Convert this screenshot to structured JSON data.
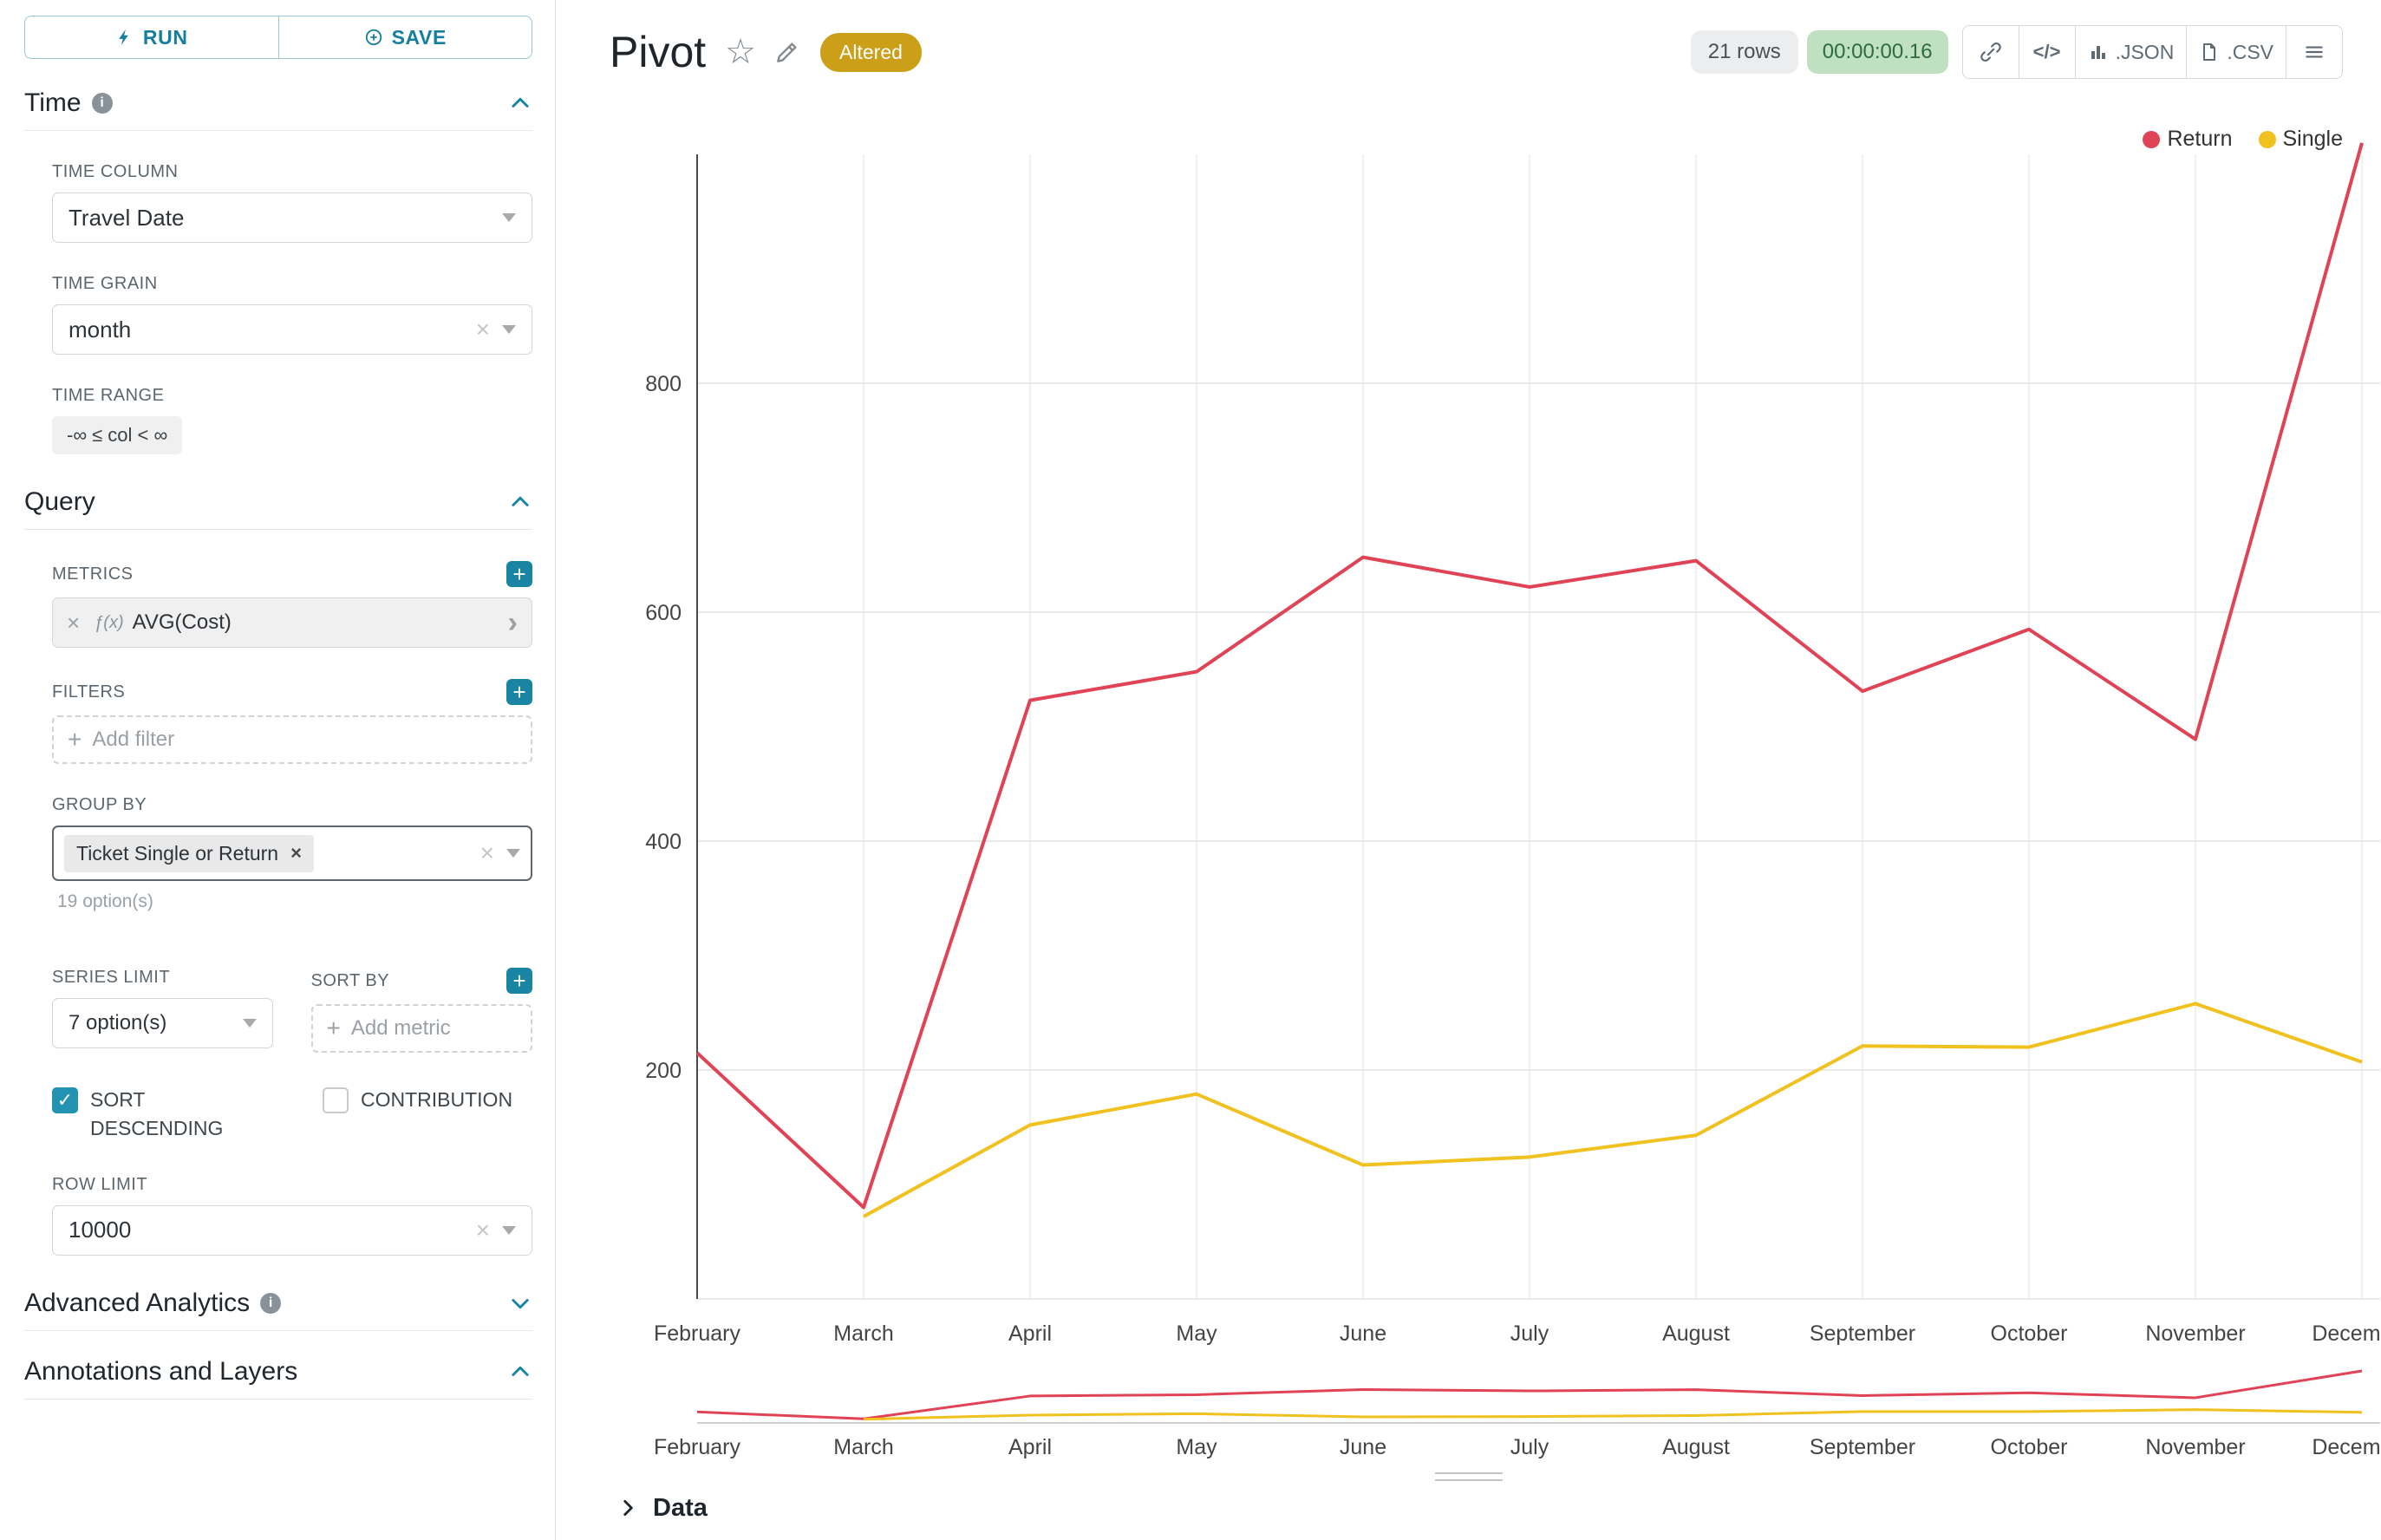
{
  "colors": {
    "accent": "#1a85a3",
    "series_return": "#e04355",
    "series_single": "#f0c11f",
    "altered_badge_bg": "#cb9f17",
    "timer_badge_bg": "#bfe0c1",
    "timer_badge_text": "#2f6c3d"
  },
  "icons": {
    "star": "☆",
    "plus": "+",
    "close": "×",
    "check": "✓",
    "caret_right": "›",
    "code": "</>",
    "info": "i"
  },
  "toolbar": {
    "run_label": "RUN",
    "save_label": "SAVE"
  },
  "sidebar": {
    "time": {
      "title": "Time",
      "time_column_label": "TIME COLUMN",
      "time_column_value": "Travel Date",
      "time_grain_label": "TIME GRAIN",
      "time_grain_value": "month",
      "time_range_label": "TIME RANGE",
      "time_range_value": "-∞ ≤ col < ∞"
    },
    "query": {
      "title": "Query",
      "metrics_label": "METRICS",
      "metric_fx": "ƒ(x)",
      "metric_name": "AVG(Cost)",
      "filters_label": "FILTERS",
      "add_filter_placeholder": "Add filter",
      "group_by_label": "GROUP BY",
      "group_by_value": "Ticket Single or Return",
      "group_by_hint": "19 option(s)",
      "series_limit_label": "SERIES LIMIT",
      "series_limit_value": "7 option(s)",
      "sort_by_label": "SORT BY",
      "add_metric_placeholder": "Add metric",
      "sort_descending_label": "SORT DESCENDING",
      "contribution_label": "CONTRIBUTION",
      "row_limit_label": "ROW LIMIT",
      "row_limit_value": "10000"
    },
    "advanced_analytics_title": "Advanced Analytics",
    "annotations_title": "Annotations and Layers"
  },
  "header": {
    "title": "Pivot",
    "altered_badge": "Altered",
    "rows_badge": "21 rows",
    "timer_badge": "00:00:00.16",
    "json_button": ".JSON",
    "csv_button": ".CSV"
  },
  "chart_data": {
    "type": "line",
    "x": [
      "February",
      "March",
      "April",
      "May",
      "June",
      "July",
      "August",
      "September",
      "October",
      "November",
      "December"
    ],
    "series": [
      {
        "name": "Return",
        "color": "#e04355",
        "values": [
          215,
          80,
          523,
          548,
          648,
          622,
          645,
          531,
          585,
          489,
          1010
        ]
      },
      {
        "name": "Single",
        "color": "#f0c11f",
        "values": [
          null,
          72,
          152,
          179,
          117,
          124,
          143,
          221,
          220,
          258,
          207
        ]
      }
    ],
    "yticks": [
      200,
      400,
      600,
      800
    ],
    "ylim": [
      0,
      1000
    ],
    "grid": true,
    "legend_position": "top-right",
    "has_range_slider": true
  },
  "data_panel": {
    "label": "Data"
  }
}
